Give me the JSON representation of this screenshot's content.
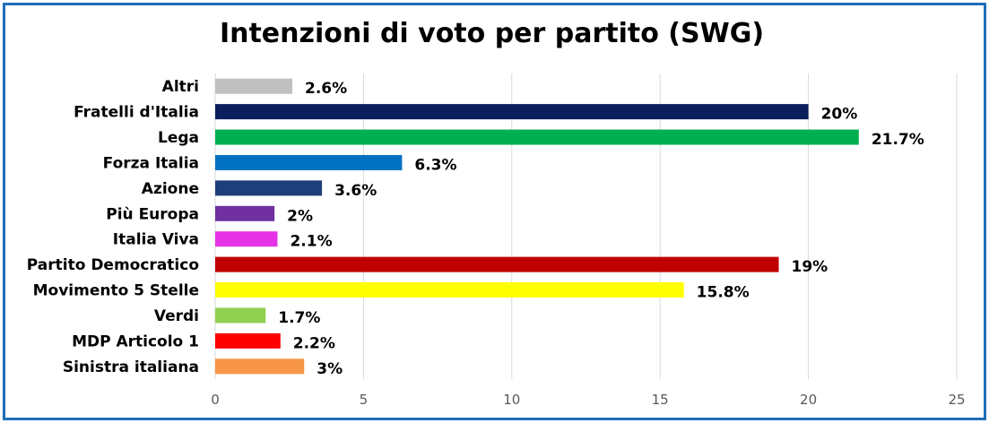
{
  "chart_data": {
    "type": "bar",
    "orientation": "horizontal",
    "title": "Intenzioni di voto per partito (SWG)",
    "categories": [
      "Altri",
      "Fratelli d'Italia",
      "Lega",
      "Forza Italia",
      "Azione",
      "Più Europa",
      "Italia Viva",
      "Partito Democratico",
      "Movimento 5 Stelle",
      "Verdi",
      "MDP Articolo 1",
      "Sinistra italiana"
    ],
    "values": [
      2.6,
      20,
      21.7,
      6.3,
      3.6,
      2,
      2.1,
      19,
      15.8,
      1.7,
      2.2,
      3
    ],
    "value_labels": [
      "2.6%",
      "20%",
      "21.7%",
      "6.3%",
      "3.6%",
      "2%",
      "2.1%",
      "19%",
      "15.8%",
      "1.7%",
      "2.2%",
      "3%"
    ],
    "colors": [
      "#C0C0C0",
      "#0A1F5C",
      "#00B050",
      "#0070C0",
      "#1F3F7A",
      "#7030A0",
      "#E632E6",
      "#C00000",
      "#FFFF00",
      "#92D050",
      "#FF0000",
      "#F79646"
    ],
    "xlim": [
      0,
      25
    ],
    "xticks": [
      "0",
      "5",
      "10",
      "15",
      "20",
      "25"
    ],
    "grid": true,
    "legend": "none"
  }
}
